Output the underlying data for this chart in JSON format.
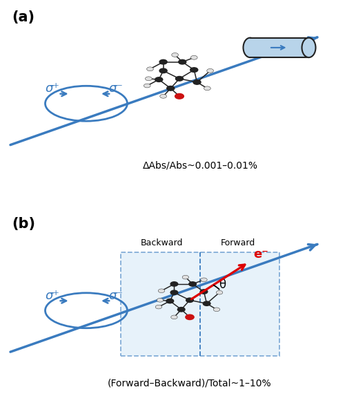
{
  "bg_color": "#ffffff",
  "blue": "#3a7bbf",
  "red": "#dd0000",
  "dark": "#222222",
  "light_atom": "#e0e0e0",
  "red_atom": "#cc1111",
  "cyl_fill": "#b8d4ea",
  "cyl_edge": "#222222",
  "box_fill": "#d8eaf7",
  "box_edge": "#3a7bbf",
  "panel_a": "(a)",
  "panel_b": "(b)",
  "sigma_p": "σ⁺",
  "sigma_m": "σ⁻",
  "delta_text": "ΔAbs/Abs~0.001–0.01%",
  "fb_text": "(Forward–Backward)/Total~1–10%",
  "backward": "Backward",
  "forward": "Forward",
  "eminus": "e⁻",
  "theta": "θ"
}
